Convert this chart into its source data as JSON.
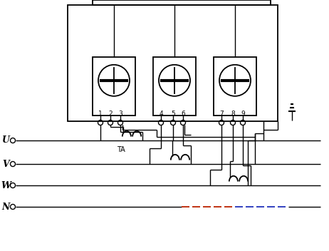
{
  "bg_color": "#ffffff",
  "lc": "#000000",
  "red": "#bb2200",
  "blue": "#2233bb",
  "phase_labels": [
    "U",
    "V",
    "W",
    "N"
  ],
  "ta_label": "TA",
  "terminal_labels": [
    "1",
    "2",
    "3",
    "4",
    "5",
    "6",
    "7",
    "8",
    "9"
  ],
  "figsize": [
    4.62,
    3.52
  ],
  "dpi": 100
}
